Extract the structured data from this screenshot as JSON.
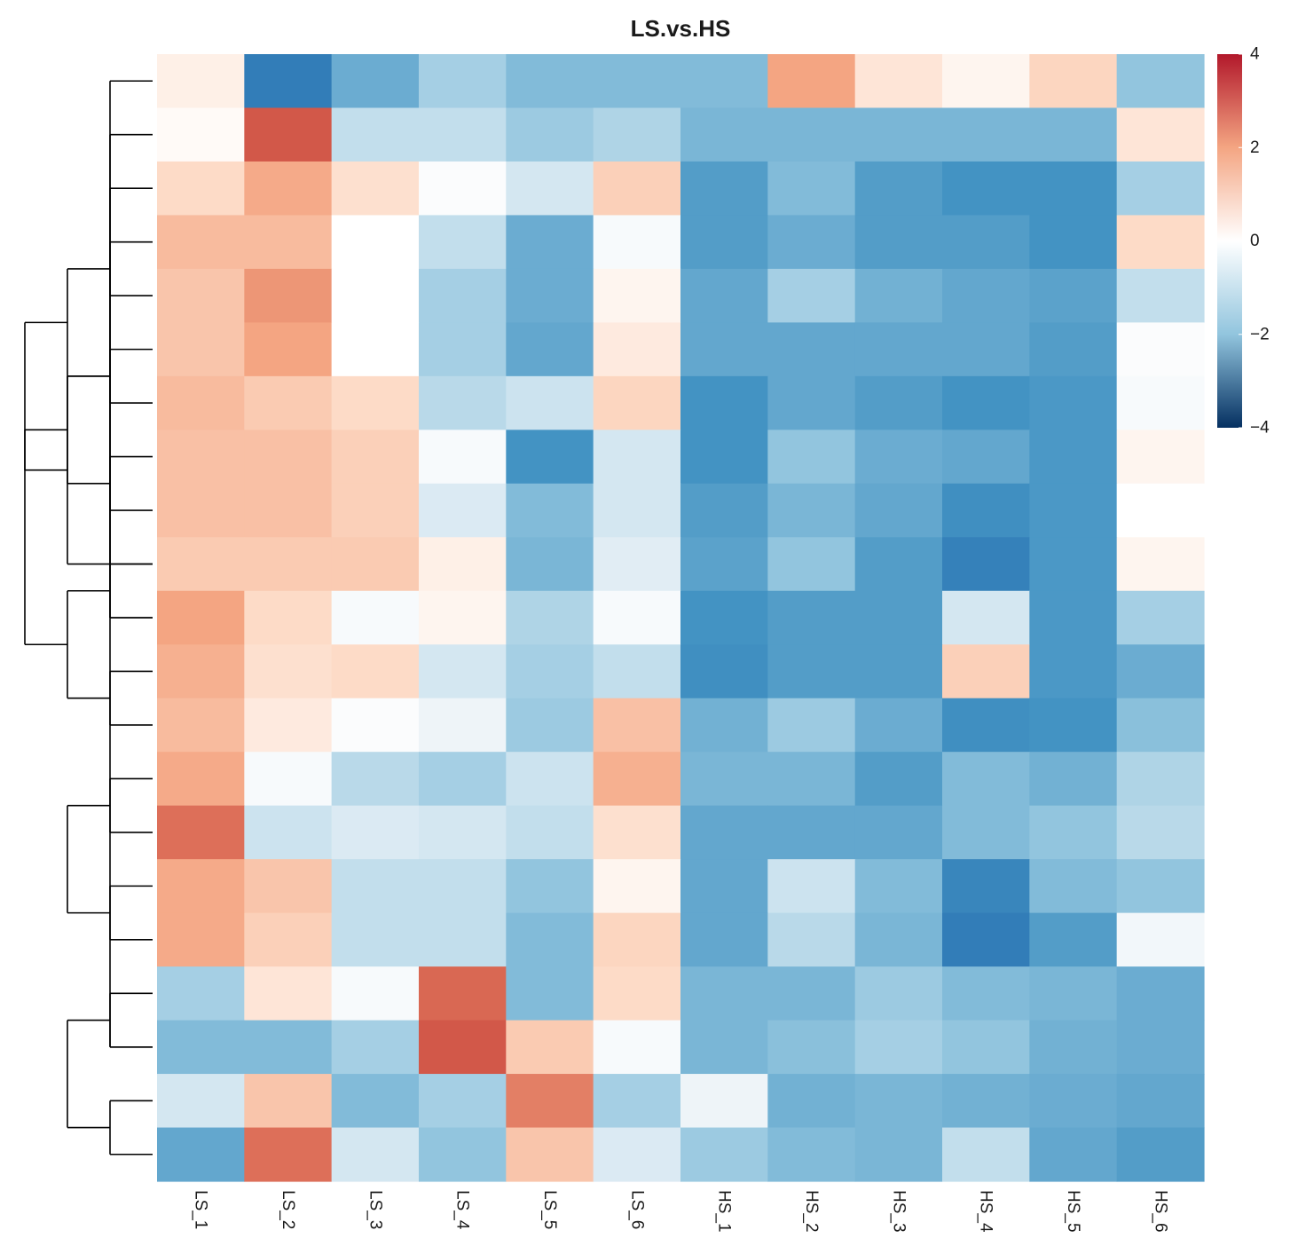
{
  "chart_data": {
    "type": "heatmap",
    "title": "LS.vs.HS",
    "columns": [
      "LS_1",
      "LS_2",
      "LS_3",
      "LS_4",
      "LS_5",
      "LS_6",
      "HS_1",
      "HS_2",
      "HS_3",
      "HS_4",
      "HS_5",
      "HS_6"
    ],
    "row_count": 21,
    "values": [
      [
        0.8,
        -2.5,
        -1.5,
        -0.8,
        -1.2,
        -1.2,
        -1.2,
        2.2,
        1.0,
        0.7,
        1.3,
        -1.0
      ],
      [
        0.6,
        3.2,
        -0.5,
        -0.5,
        -0.9,
        -0.7,
        -1.3,
        -1.3,
        -1.3,
        -1.3,
        -1.3,
        1.0
      ],
      [
        1.2,
        2.1,
        1.1,
        0.4,
        -0.3,
        1.4,
        -1.8,
        -1.2,
        -1.8,
        -2.0,
        -2.0,
        -0.8
      ],
      [
        1.8,
        1.8,
        0.5,
        -0.5,
        -1.5,
        0.3,
        -1.8,
        -1.5,
        -1.8,
        -1.8,
        -2.0,
        1.2
      ],
      [
        1.6,
        2.4,
        0.5,
        -0.8,
        -1.5,
        0.7,
        -1.6,
        -0.8,
        -1.4,
        -1.6,
        -1.7,
        -0.5
      ],
      [
        1.6,
        2.2,
        0.5,
        -0.8,
        -1.6,
        0.9,
        -1.6,
        -1.6,
        -1.6,
        -1.6,
        -1.8,
        0.4
      ],
      [
        1.8,
        1.5,
        1.2,
        -0.6,
        -0.4,
        1.3,
        -2.0,
        -1.6,
        -1.8,
        -2.0,
        -1.9,
        0.3
      ],
      [
        1.7,
        1.7,
        1.4,
        0.3,
        -2.0,
        -0.3,
        -2.0,
        -1.0,
        -1.5,
        -1.6,
        -1.9,
        0.7
      ],
      [
        1.7,
        1.7,
        1.4,
        -0.2,
        -1.2,
        -0.3,
        -1.8,
        -1.3,
        -1.6,
        -2.1,
        -1.9,
        0.5
      ],
      [
        1.5,
        1.5,
        1.5,
        0.8,
        -1.3,
        -0.1,
        -1.7,
        -1.0,
        -1.8,
        -2.4,
        -1.9,
        0.7
      ],
      [
        2.2,
        1.2,
        0.3,
        0.7,
        -0.7,
        0.3,
        -2.0,
        -1.8,
        -1.8,
        -0.3,
        -1.9,
        -0.8
      ],
      [
        2.0,
        1.1,
        1.2,
        -0.3,
        -0.8,
        -0.5,
        -2.1,
        -1.8,
        -1.8,
        1.4,
        -1.9,
        -1.5
      ],
      [
        1.8,
        0.9,
        0.4,
        0.1,
        -0.9,
        1.7,
        -1.4,
        -0.9,
        -1.5,
        -2.1,
        -2.0,
        -1.1
      ],
      [
        2.1,
        0.3,
        -0.6,
        -0.8,
        -0.4,
        2.0,
        -1.3,
        -1.3,
        -1.8,
        -1.2,
        -1.4,
        -0.7
      ],
      [
        2.9,
        -0.4,
        -0.2,
        -0.3,
        -0.5,
        1.1,
        -1.6,
        -1.6,
        -1.6,
        -1.2,
        -1.0,
        -0.6
      ],
      [
        2.1,
        1.6,
        -0.5,
        -0.5,
        -1.0,
        0.7,
        -1.6,
        -0.4,
        -1.2,
        -2.3,
        -1.2,
        -1.0
      ],
      [
        2.1,
        1.4,
        -0.5,
        -0.5,
        -1.2,
        1.3,
        -1.6,
        -0.6,
        -1.3,
        -2.5,
        -1.8,
        0.2
      ],
      [
        -0.8,
        1.0,
        0.3,
        3.0,
        -1.2,
        1.2,
        -1.3,
        -1.3,
        -0.9,
        -1.2,
        -1.3,
        -1.5
      ],
      [
        -1.2,
        -1.2,
        -0.8,
        3.2,
        1.5,
        0.3,
        -1.3,
        -1.1,
        -0.8,
        -1.0,
        -1.4,
        -1.5
      ],
      [
        -0.3,
        1.6,
        -1.2,
        -0.8,
        2.7,
        -0.8,
        0.1,
        -1.4,
        -1.3,
        -1.4,
        -1.5,
        -1.6
      ],
      [
        -1.6,
        2.9,
        -0.3,
        -1.0,
        1.6,
        -0.2,
        -0.9,
        -1.2,
        -1.3,
        -0.5,
        -1.6,
        -1.8
      ]
    ],
    "color_scale": {
      "min": -4,
      "max": 4,
      "low_color": "#053061",
      "mid_color": "#ffffff",
      "high_color": "#b2182b",
      "ticks": [
        4,
        2,
        0,
        -2,
        -4
      ],
      "tick_labels": [
        "4",
        "2",
        "0",
        "−2",
        "−4"
      ]
    },
    "row_dendrogram": [
      [
        0,
        18
      ],
      [
        1,
        10
      ],
      [
        2,
        9
      ],
      [
        3,
        4
      ],
      [
        5,
        6
      ],
      [
        7,
        8
      ],
      [
        9,
        10
      ],
      [
        11,
        12
      ],
      [
        13,
        14
      ],
      [
        15,
        16
      ],
      [
        17,
        18
      ],
      [
        19,
        20
      ],
      [
        21,
        22
      ],
      [
        23,
        24
      ],
      [
        25,
        26
      ],
      [
        27,
        28
      ],
      [
        29,
        30
      ],
      [
        31,
        32
      ],
      [
        33,
        34
      ],
      [
        35,
        36
      ]
    ],
    "legend_position": "right",
    "colors": {
      "line": "#000000",
      "text": "#1a1a1a"
    }
  }
}
